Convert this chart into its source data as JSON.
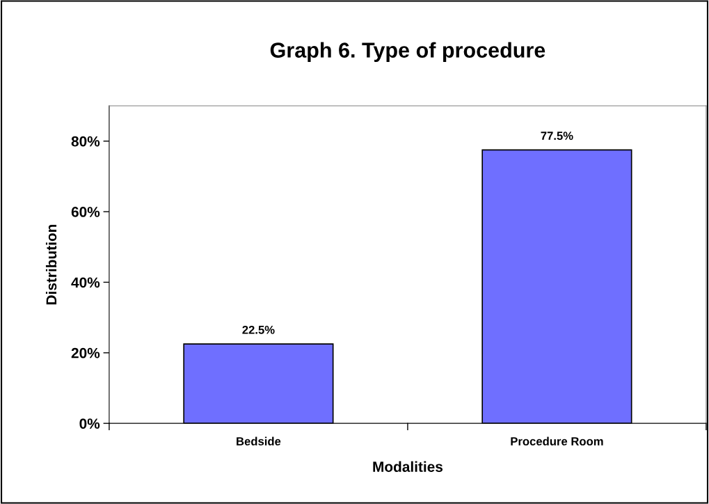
{
  "chart_data": {
    "type": "bar",
    "title": "Graph 6. Type of procedure",
    "xlabel": "Modalities",
    "ylabel": "Distribution",
    "categories": [
      "Bedside",
      "Procedure Room"
    ],
    "values": [
      22.5,
      77.5
    ],
    "value_labels": [
      "22.5%",
      "77.5%"
    ],
    "color": "#6f6fff",
    "ylim": [
      0,
      90
    ],
    "yticks": [
      {
        "value": 0,
        "label": "0%"
      },
      {
        "value": 20,
        "label": "20%"
      },
      {
        "value": 40,
        "label": "40%"
      },
      {
        "value": 60,
        "label": "60%"
      },
      {
        "value": 80,
        "label": "80%"
      }
    ],
    "grid": false,
    "legend": false
  }
}
